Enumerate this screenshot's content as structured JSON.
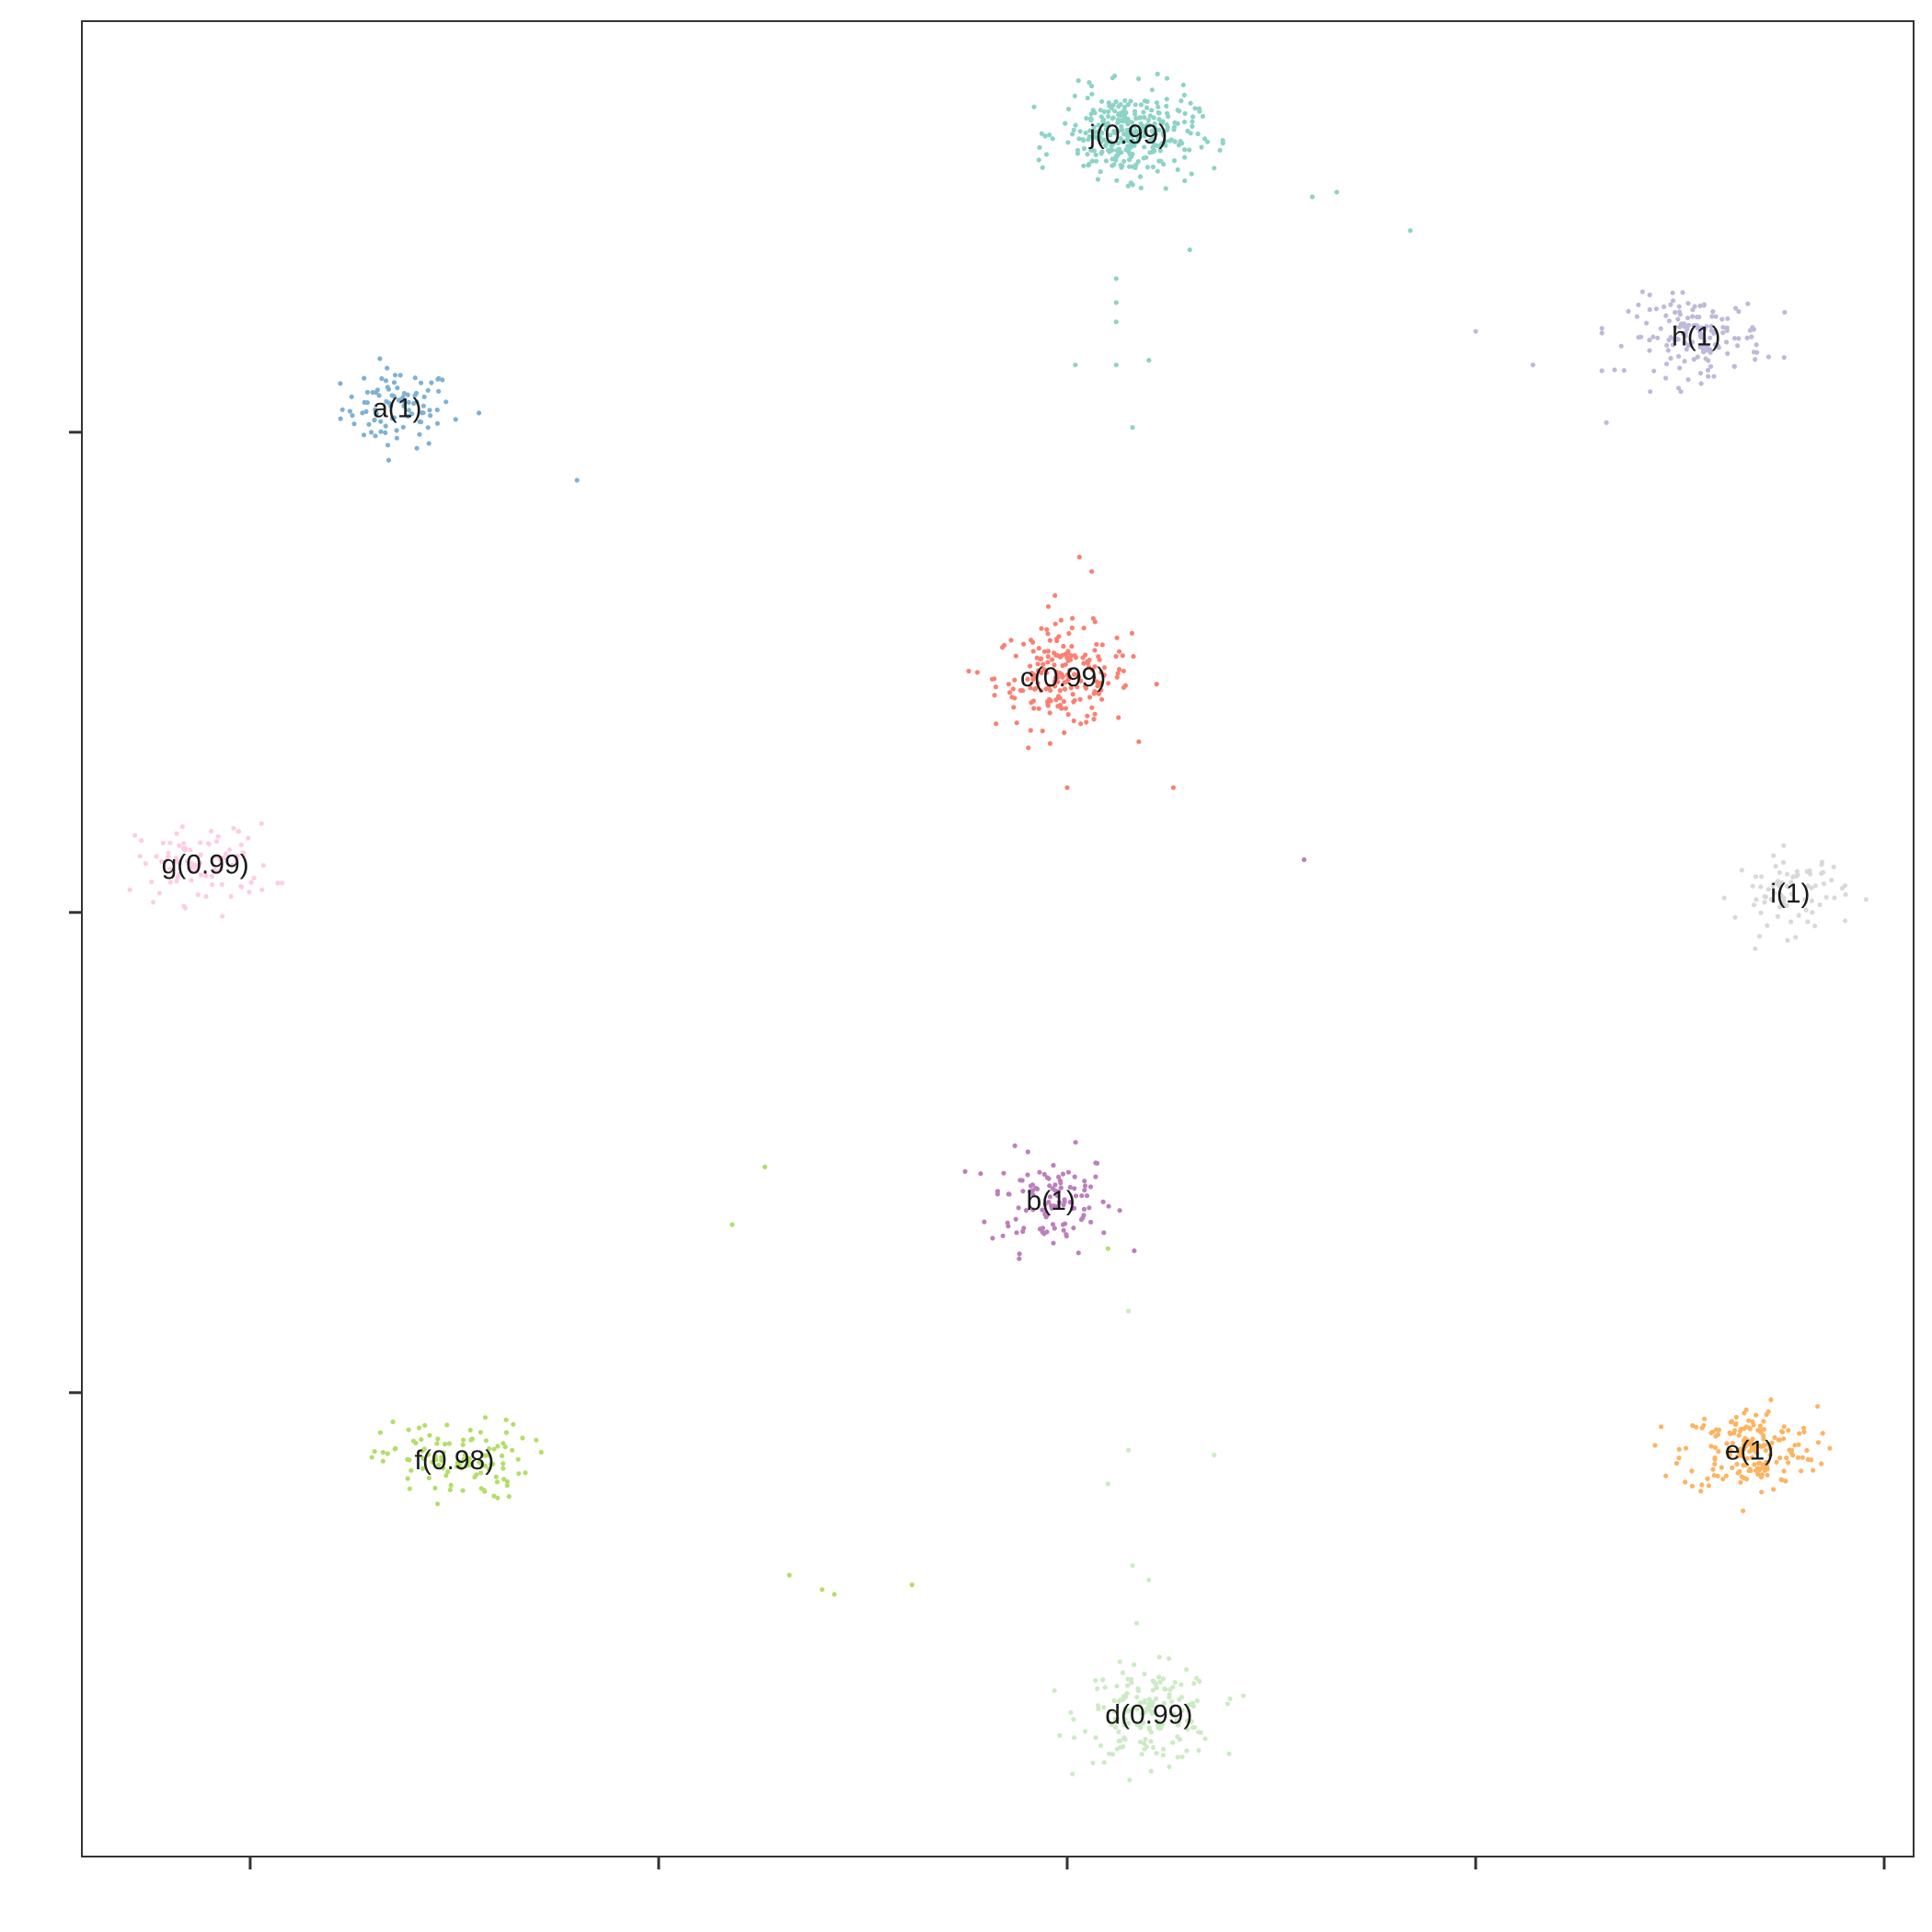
{
  "chart_data": {
    "type": "scatter",
    "title": "",
    "xlabel": "",
    "ylabel": "",
    "xlim": [
      -2.06,
      20.36
    ],
    "ylim": [
      -19.66,
      18.56
    ],
    "x_ticks": [
      0,
      5,
      10,
      15,
      20
    ],
    "y_ticks": [
      -10,
      0,
      10
    ],
    "tick_labels_shown": false,
    "grid": false,
    "legend": "none",
    "clusters": [
      {
        "label": "a(1)",
        "color": "#80b1d3",
        "center": [
          1.8,
          10.5
        ],
        "spread": [
          0.45,
          0.55
        ],
        "n": 90
      },
      {
        "label": "b(1)",
        "color": "#bc80bd",
        "center": [
          9.8,
          -6.0
        ],
        "spread": [
          0.5,
          0.7
        ],
        "n": 110
      },
      {
        "label": "c(0.99)",
        "color": "#fb8072",
        "center": [
          9.95,
          4.9
        ],
        "spread": [
          0.55,
          0.7
        ],
        "n": 200
      },
      {
        "label": "d(0.99)",
        "color": "#ccebc5",
        "center": [
          11.0,
          -16.7
        ],
        "spread": [
          0.55,
          0.65
        ],
        "n": 170
      },
      {
        "label": "e(1)",
        "color": "#fdb462",
        "center": [
          18.35,
          -11.2
        ],
        "spread": [
          0.55,
          0.6
        ],
        "n": 190
      },
      {
        "label": "f(0.98)",
        "color": "#b3de69",
        "center": [
          2.5,
          -11.4
        ],
        "spread": [
          0.6,
          0.55
        ],
        "n": 110
      },
      {
        "label": "g(0.99)",
        "color": "#fccde5",
        "center": [
          -0.55,
          1.0
        ],
        "spread": [
          0.55,
          0.55
        ],
        "n": 90
      },
      {
        "label": "h(1)",
        "color": "#bebada",
        "center": [
          17.7,
          12.0
        ],
        "spread": [
          0.55,
          0.55
        ],
        "n": 150
      },
      {
        "label": "i(1)",
        "color": "#d9d9d9",
        "center": [
          18.85,
          0.4
        ],
        "spread": [
          0.45,
          0.55
        ],
        "n": 80
      },
      {
        "label": "j(0.99)",
        "color": "#8dd3c7",
        "center": [
          10.75,
          16.2
        ],
        "spread": [
          0.55,
          0.6
        ],
        "n": 330
      }
    ],
    "outliers": [
      {
        "color": "#80b1d3",
        "x": 4.0,
        "y": 9.0
      },
      {
        "color": "#80b1d3",
        "x": 2.8,
        "y": 10.4
      },
      {
        "color": "#8dd3c7",
        "x": 10.6,
        "y": 13.2
      },
      {
        "color": "#8dd3c7",
        "x": 10.6,
        "y": 12.7
      },
      {
        "color": "#8dd3c7",
        "x": 10.6,
        "y": 12.3
      },
      {
        "color": "#8dd3c7",
        "x": 10.1,
        "y": 11.4
      },
      {
        "color": "#8dd3c7",
        "x": 10.6,
        "y": 11.4
      },
      {
        "color": "#8dd3c7",
        "x": 11.0,
        "y": 11.5
      },
      {
        "color": "#8dd3c7",
        "x": 10.8,
        "y": 10.1
      },
      {
        "color": "#8dd3c7",
        "x": 11.5,
        "y": 13.8
      },
      {
        "color": "#8dd3c7",
        "x": 13.0,
        "y": 14.9
      },
      {
        "color": "#8dd3c7",
        "x": 13.3,
        "y": 15.0
      },
      {
        "color": "#8dd3c7",
        "x": 14.2,
        "y": 14.2
      },
      {
        "color": "#8dd3c7",
        "x": 11.8,
        "y": 15.5
      },
      {
        "color": "#bebada",
        "x": 15.0,
        "y": 12.1
      },
      {
        "color": "#bebada",
        "x": 15.7,
        "y": 11.4
      },
      {
        "color": "#bebada",
        "x": 16.6,
        "y": 10.2
      },
      {
        "color": "#bebada",
        "x": 16.7,
        "y": 11.3
      },
      {
        "color": "#fb8072",
        "x": 10.15,
        "y": 7.4
      },
      {
        "color": "#fb8072",
        "x": 10.3,
        "y": 7.1
      },
      {
        "color": "#fb8072",
        "x": 9.85,
        "y": 6.6
      },
      {
        "color": "#fb8072",
        "x": 8.9,
        "y": 5.0
      },
      {
        "color": "#fb8072",
        "x": 10.0,
        "y": 2.6
      },
      {
        "color": "#fb8072",
        "x": 11.3,
        "y": 2.6
      },
      {
        "color": "#bc80bd",
        "x": 12.9,
        "y": 1.1
      },
      {
        "color": "#b3de69",
        "x": 6.3,
        "y": -5.3
      },
      {
        "color": "#b3de69",
        "x": 5.9,
        "y": -6.5
      },
      {
        "color": "#b3de69",
        "x": 6.6,
        "y": -13.8
      },
      {
        "color": "#b3de69",
        "x": 7.0,
        "y": -14.1
      },
      {
        "color": "#b3de69",
        "x": 7.15,
        "y": -14.2
      },
      {
        "color": "#b3de69",
        "x": 8.1,
        "y": -14.0
      },
      {
        "color": "#b3de69",
        "x": 10.5,
        "y": -7.0
      },
      {
        "color": "#ccebc5",
        "x": 10.75,
        "y": -8.3
      },
      {
        "color": "#ccebc5",
        "x": 10.75,
        "y": -11.2
      },
      {
        "color": "#ccebc5",
        "x": 11.8,
        "y": -11.3
      },
      {
        "color": "#ccebc5",
        "x": 10.5,
        "y": -11.9
      },
      {
        "color": "#ccebc5",
        "x": 10.8,
        "y": -13.6
      },
      {
        "color": "#ccebc5",
        "x": 11.0,
        "y": -13.9
      },
      {
        "color": "#ccebc5",
        "x": 10.85,
        "y": -14.8
      }
    ]
  }
}
